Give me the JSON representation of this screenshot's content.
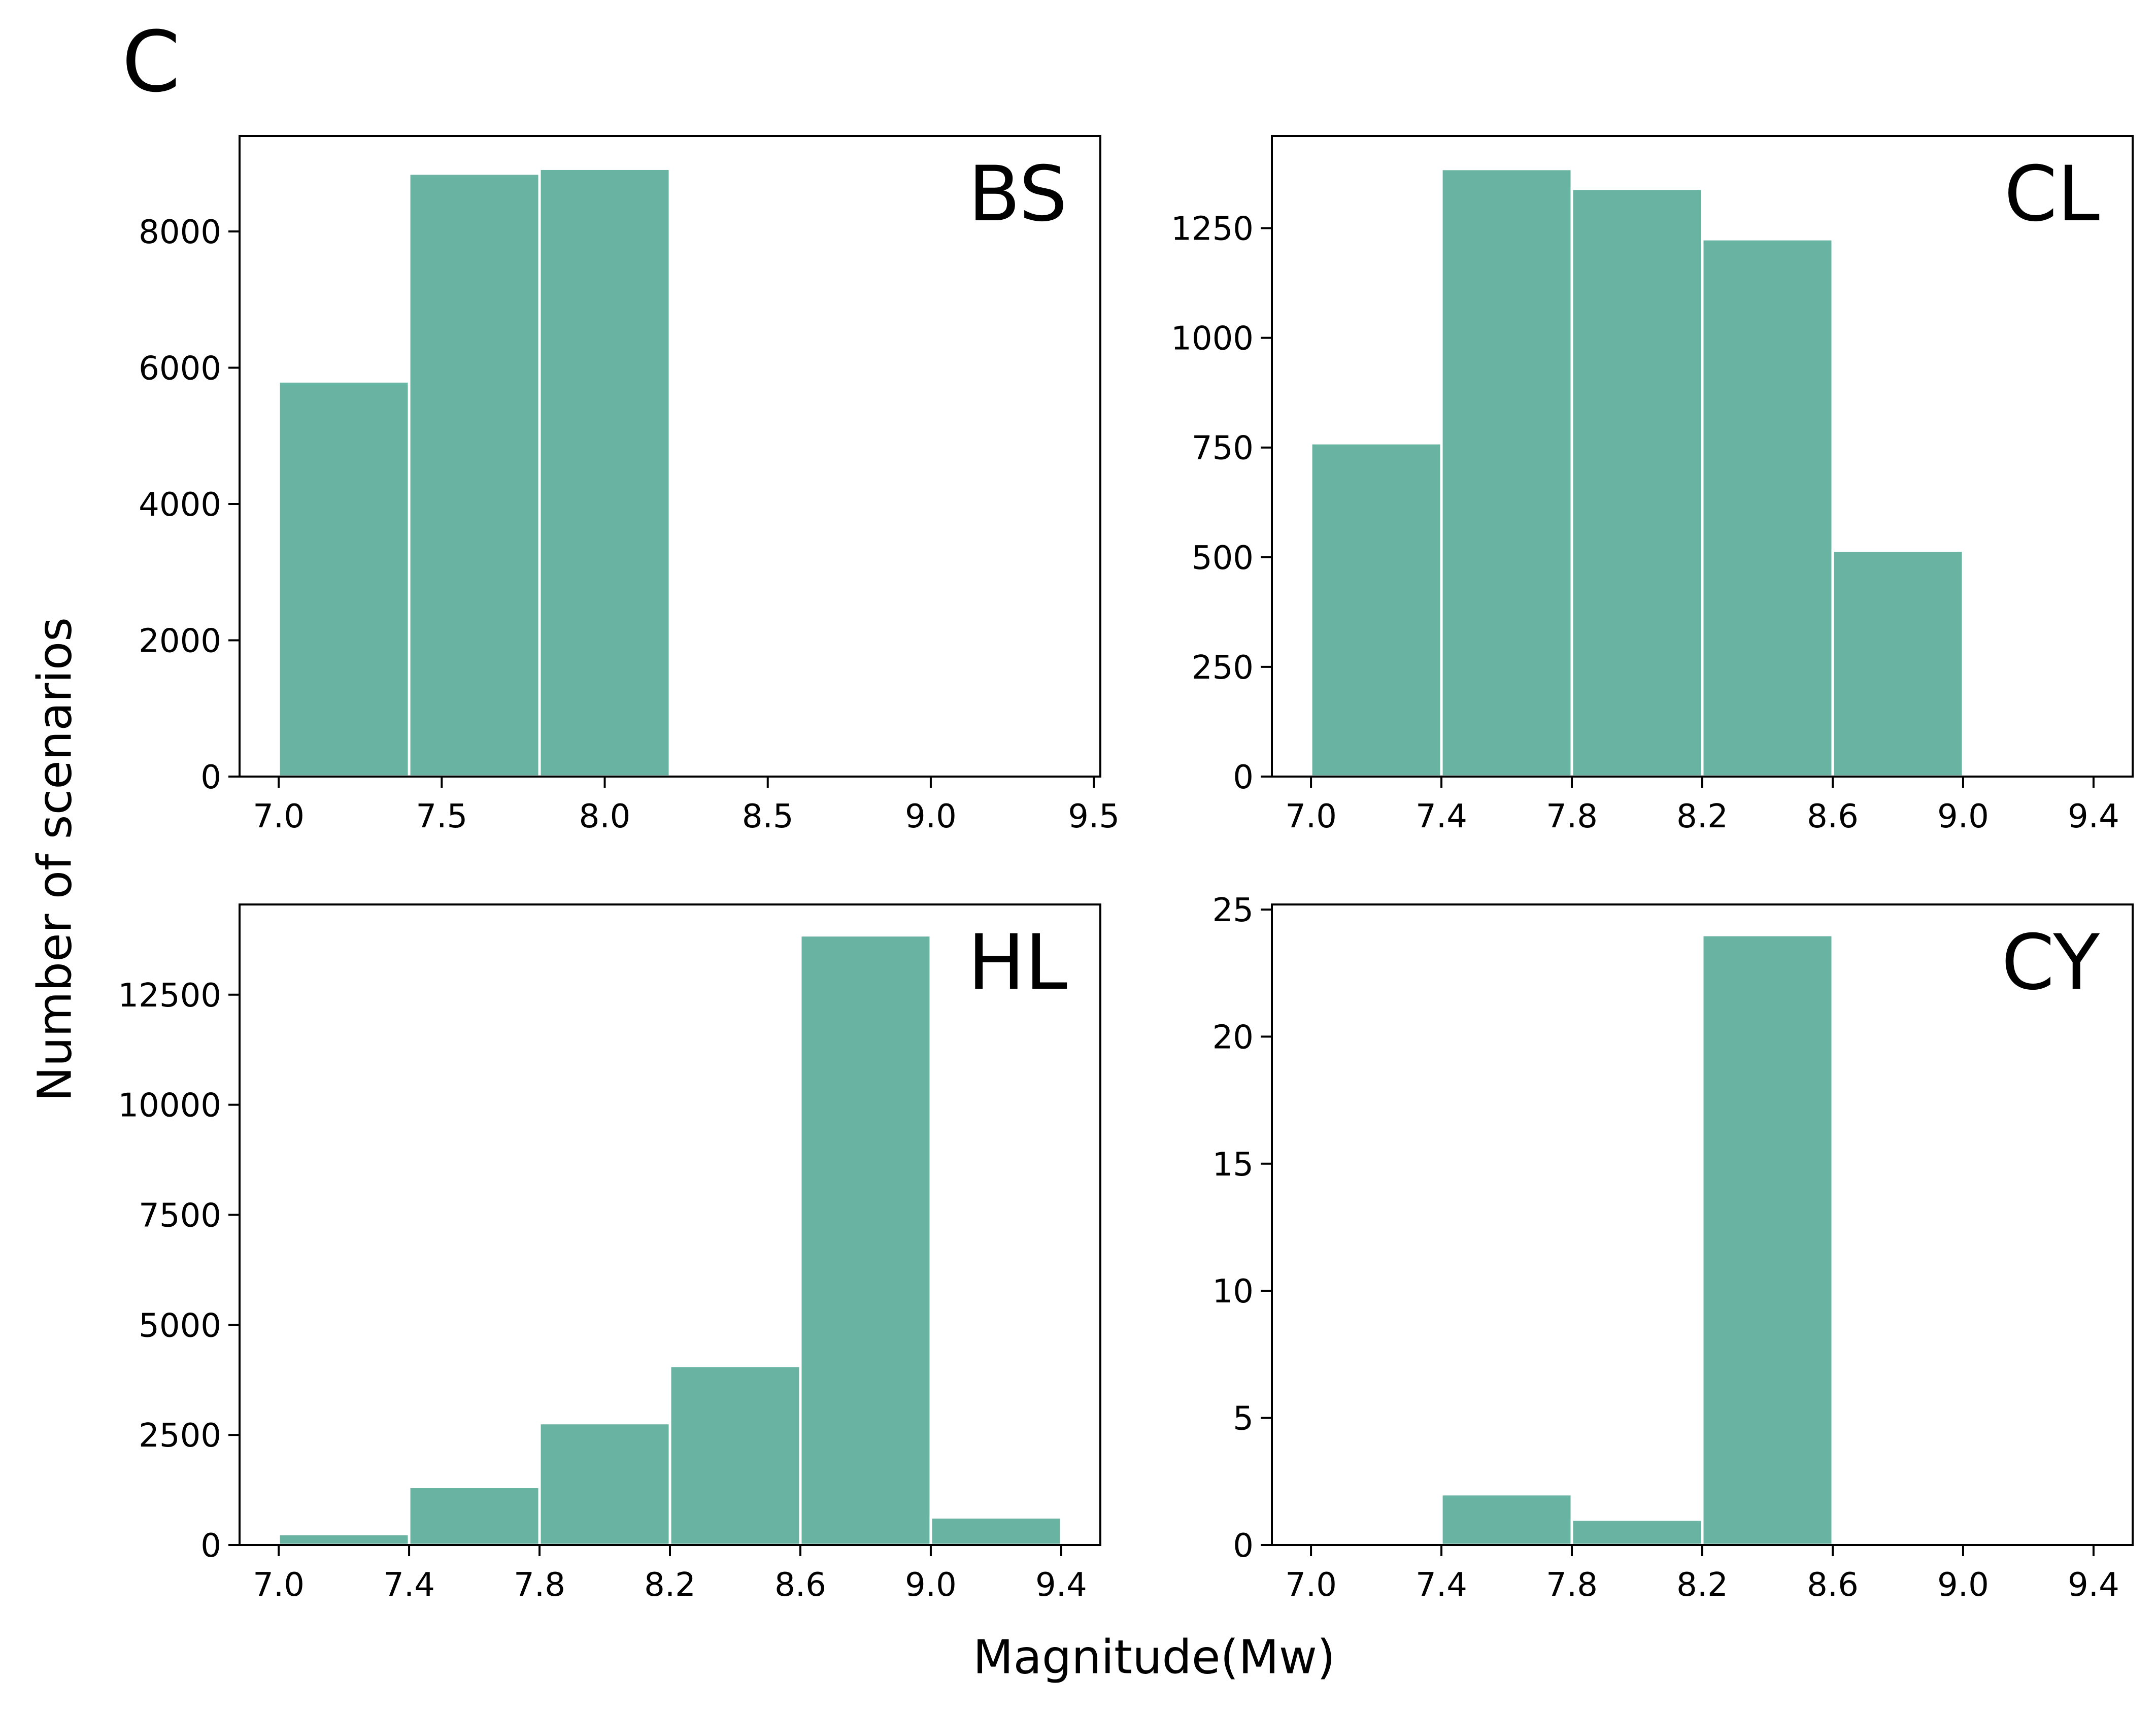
{
  "figure": {
    "panel_letter": "C",
    "ylabel": "Number of scenarios",
    "xlabel": "Magnitude(Mw)",
    "bar_color": "#69b3a2"
  },
  "chart_data": [
    {
      "type": "bar",
      "title": "BS",
      "bin_edges": [
        7.0,
        7.4,
        7.8,
        8.2
      ],
      "values": [
        5800,
        8850,
        8920
      ],
      "xlim": [
        6.88,
        9.52
      ],
      "ylim": [
        0,
        9400
      ],
      "xticks": [
        7.0,
        7.5,
        8.0,
        8.5,
        9.0,
        9.5
      ],
      "xtick_labels": [
        "7.0",
        "7.5",
        "8.0",
        "8.5",
        "9.0",
        "9.5"
      ],
      "yticks": [
        0,
        2000,
        4000,
        6000,
        8000
      ],
      "ytick_labels": [
        "0",
        "2000",
        "4000",
        "6000",
        "8000"
      ],
      "grid": false
    },
    {
      "type": "bar",
      "title": "CL",
      "bin_edges": [
        7.0,
        7.4,
        7.8,
        8.2,
        8.6,
        9.0
      ],
      "values": [
        760,
        1385,
        1340,
        1225,
        515
      ],
      "xlim": [
        6.88,
        9.52
      ],
      "ylim": [
        0,
        1460
      ],
      "xticks": [
        7.0,
        7.4,
        7.8,
        8.2,
        8.6,
        9.0,
        9.4
      ],
      "xtick_labels": [
        "7.0",
        "7.4",
        "7.8",
        "8.2",
        "8.6",
        "9.0",
        "9.4"
      ],
      "yticks": [
        0,
        250,
        500,
        750,
        1000,
        1250
      ],
      "ytick_labels": [
        "0",
        "250",
        "500",
        "750",
        "1000",
        "1250"
      ],
      "grid": false
    },
    {
      "type": "bar",
      "title": "HL",
      "bin_edges": [
        7.0,
        7.4,
        7.8,
        8.2,
        8.6,
        9.0,
        9.4
      ],
      "values": [
        250,
        1320,
        2770,
        4070,
        13850,
        630
      ],
      "xlim": [
        6.88,
        9.52
      ],
      "ylim": [
        0,
        14550
      ],
      "xticks": [
        7.0,
        7.4,
        7.8,
        8.2,
        8.6,
        9.0,
        9.4
      ],
      "xtick_labels": [
        "7.0",
        "7.4",
        "7.8",
        "8.2",
        "8.6",
        "9.0",
        "9.4"
      ],
      "yticks": [
        0,
        2500,
        5000,
        7500,
        10000,
        12500
      ],
      "ytick_labels": [
        "0",
        "2500",
        "5000",
        "7500",
        "10000",
        "12500"
      ],
      "grid": false
    },
    {
      "type": "bar",
      "title": "CY",
      "bin_edges": [
        7.0,
        7.4,
        7.8,
        8.2,
        8.6,
        9.0,
        9.4
      ],
      "values": [
        0,
        2,
        1,
        24,
        0,
        0
      ],
      "xlim": [
        6.88,
        9.52
      ],
      "ylim": [
        0,
        25.2
      ],
      "xticks": [
        7.0,
        7.4,
        7.8,
        8.2,
        8.6,
        9.0,
        9.4
      ],
      "xtick_labels": [
        "7.0",
        "7.4",
        "7.8",
        "8.2",
        "8.6",
        "9.0",
        "9.4"
      ],
      "yticks": [
        0,
        5,
        10,
        15,
        20,
        25
      ],
      "ytick_labels": [
        "0",
        "5",
        "10",
        "15",
        "20",
        "25"
      ],
      "grid": false
    }
  ]
}
